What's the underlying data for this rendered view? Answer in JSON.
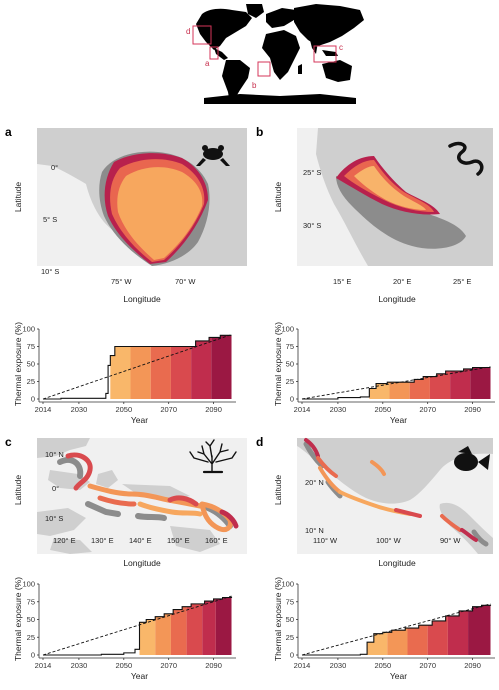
{
  "overview": {
    "inset_labels": [
      "a",
      "b",
      "c",
      "d"
    ],
    "box_color": "#d6365a"
  },
  "colors": {
    "land": "#cfcfcf",
    "ocean": "#f0f0f0",
    "current_range": "#8e8e8e",
    "bar_palette": [
      "#fcd58c",
      "#f9b76a",
      "#f39657",
      "#e96b4f",
      "#d94a4e",
      "#c02d4d",
      "#9b1843"
    ]
  },
  "panels": {
    "a": {
      "letter": "a",
      "icon": "frog-icon",
      "map": {
        "xlabel": "Longitude",
        "ylabel": "Latitude",
        "lat_ticks": [
          "0°",
          "5° S",
          "10° S"
        ],
        "lon_ticks": [
          "75° W",
          "70° W"
        ]
      }
    },
    "b": {
      "letter": "b",
      "icon": "snake-icon",
      "map": {
        "xlabel": "Longitude",
        "ylabel": "Latitude",
        "lat_ticks": [
          "25° S",
          "30° S"
        ],
        "lon_ticks": [
          "15° E",
          "20° E",
          "25° E"
        ]
      }
    },
    "c": {
      "letter": "c",
      "icon": "coral-icon",
      "map": {
        "xlabel": "Longitude",
        "ylabel": "Latitude",
        "lat_ticks": [
          "10° N",
          "0°",
          "10° S"
        ],
        "lon_ticks": [
          "120° E",
          "130° E",
          "140° E",
          "150° E",
          "160° E"
        ]
      }
    },
    "d": {
      "letter": "d",
      "icon": "fish-icon",
      "map": {
        "xlabel": "Longitude",
        "ylabel": "Latitude",
        "lat_ticks": [
          "20° N",
          "10° N"
        ],
        "lon_ticks": [
          "110° W",
          "100° W",
          "90° W"
        ]
      }
    }
  },
  "chart_data": [
    {
      "panel": "a",
      "type": "area",
      "xlabel": "Year",
      "ylabel": "Thermal exposure (%)",
      "xlim": [
        2014,
        2100
      ],
      "ylim": [
        0,
        100
      ],
      "x_ticks": [
        "2014",
        "2030",
        "2050",
        "2070",
        "2090"
      ],
      "y_ticks": [
        "0",
        "25",
        "50",
        "75",
        "100"
      ],
      "steps": [
        [
          2014,
          0
        ],
        [
          2022,
          1
        ],
        [
          2040,
          1
        ],
        [
          2042,
          8
        ],
        [
          2043,
          48
        ],
        [
          2044,
          62
        ],
        [
          2046,
          75
        ],
        [
          2082,
          83
        ],
        [
          2088,
          88
        ],
        [
          2093,
          91
        ],
        [
          2098,
          91
        ]
      ],
      "bands": [
        [
          2044,
          2053
        ],
        [
          2053,
          2062
        ],
        [
          2062,
          2071
        ],
        [
          2071,
          2080
        ],
        [
          2080,
          2089
        ],
        [
          2089,
          2098
        ]
      ],
      "trend": [
        [
          2014,
          0
        ],
        [
          2098,
          92
        ]
      ]
    },
    {
      "panel": "b",
      "type": "area",
      "xlabel": "Year",
      "ylabel": "Thermal exposure (%)",
      "xlim": [
        2014,
        2100
      ],
      "ylim": [
        0,
        100
      ],
      "x_ticks": [
        "2014",
        "2030",
        "2050",
        "2070",
        "2090"
      ],
      "y_ticks": [
        "0",
        "25",
        "50",
        "75",
        "100"
      ],
      "steps": [
        [
          2014,
          0
        ],
        [
          2030,
          2
        ],
        [
          2040,
          3
        ],
        [
          2044,
          15
        ],
        [
          2047,
          22
        ],
        [
          2052,
          24
        ],
        [
          2064,
          28
        ],
        [
          2068,
          32
        ],
        [
          2074,
          36
        ],
        [
          2078,
          40
        ],
        [
          2086,
          43
        ],
        [
          2090,
          45
        ],
        [
          2098,
          45
        ]
      ],
      "bands": [
        [
          2044,
          2053
        ],
        [
          2053,
          2062
        ],
        [
          2062,
          2071
        ],
        [
          2071,
          2080
        ],
        [
          2080,
          2089
        ],
        [
          2089,
          2098
        ]
      ],
      "trend": [
        [
          2014,
          0
        ],
        [
          2098,
          46
        ]
      ]
    },
    {
      "panel": "c",
      "type": "area",
      "xlabel": "Year",
      "ylabel": "Thermal exposure (%)",
      "xlim": [
        2014,
        2100
      ],
      "ylim": [
        0,
        100
      ],
      "x_ticks": [
        "2014",
        "2030",
        "2050",
        "2070",
        "2090"
      ],
      "y_ticks": [
        "0",
        "25",
        "50",
        "75",
        "100"
      ],
      "steps": [
        [
          2014,
          0
        ],
        [
          2040,
          1
        ],
        [
          2050,
          3
        ],
        [
          2055,
          8
        ],
        [
          2057,
          46
        ],
        [
          2060,
          50
        ],
        [
          2064,
          54
        ],
        [
          2068,
          58
        ],
        [
          2072,
          64
        ],
        [
          2076,
          68
        ],
        [
          2080,
          72
        ],
        [
          2086,
          76
        ],
        [
          2090,
          79
        ],
        [
          2094,
          81
        ],
        [
          2098,
          82
        ]
      ],
      "bands": [
        [
          2057,
          2064
        ],
        [
          2064,
          2071
        ],
        [
          2071,
          2078
        ],
        [
          2078,
          2085
        ],
        [
          2085,
          2091
        ],
        [
          2091,
          2098
        ]
      ],
      "trend": [
        [
          2014,
          0
        ],
        [
          2098,
          83
        ]
      ]
    },
    {
      "panel": "d",
      "type": "area",
      "xlabel": "Year",
      "ylabel": "Thermal exposure (%)",
      "xlim": [
        2014,
        2100
      ],
      "ylim": [
        0,
        100
      ],
      "x_ticks": [
        "2014",
        "2030",
        "2050",
        "2070",
        "2090"
      ],
      "y_ticks": [
        "0",
        "25",
        "50",
        "75",
        "100"
      ],
      "steps": [
        [
          2014,
          0
        ],
        [
          2040,
          1
        ],
        [
          2043,
          18
        ],
        [
          2046,
          30
        ],
        [
          2050,
          32
        ],
        [
          2054,
          35
        ],
        [
          2060,
          38
        ],
        [
          2066,
          42
        ],
        [
          2072,
          48
        ],
        [
          2078,
          55
        ],
        [
          2084,
          62
        ],
        [
          2090,
          68
        ],
        [
          2094,
          70
        ],
        [
          2098,
          71
        ]
      ],
      "bands": [
        [
          2043,
          2052
        ],
        [
          2052,
          2061
        ],
        [
          2061,
          2070
        ],
        [
          2070,
          2079
        ],
        [
          2079,
          2088
        ],
        [
          2088,
          2098
        ]
      ],
      "trend": [
        [
          2014,
          0
        ],
        [
          2098,
          72
        ]
      ]
    }
  ]
}
